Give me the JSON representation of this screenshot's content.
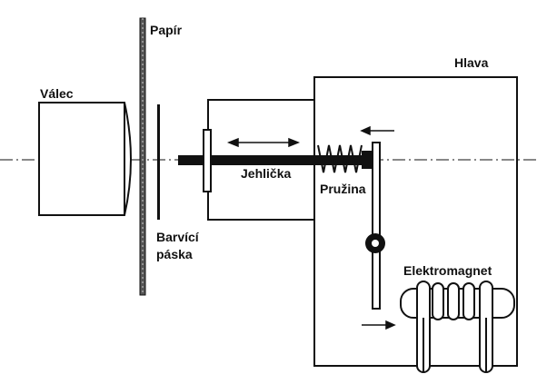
{
  "labels": {
    "valec": "Válec",
    "papir": "Papír",
    "hlava": "Hlava",
    "jehlicka": "Jehlička",
    "pruzina": "Pružina",
    "barvici_line1": "Barvící",
    "barvici_line2": "páska",
    "elektromagnet": "Elektromagnet"
  },
  "colors": {
    "ink": "#111111",
    "background": "#ffffff"
  }
}
